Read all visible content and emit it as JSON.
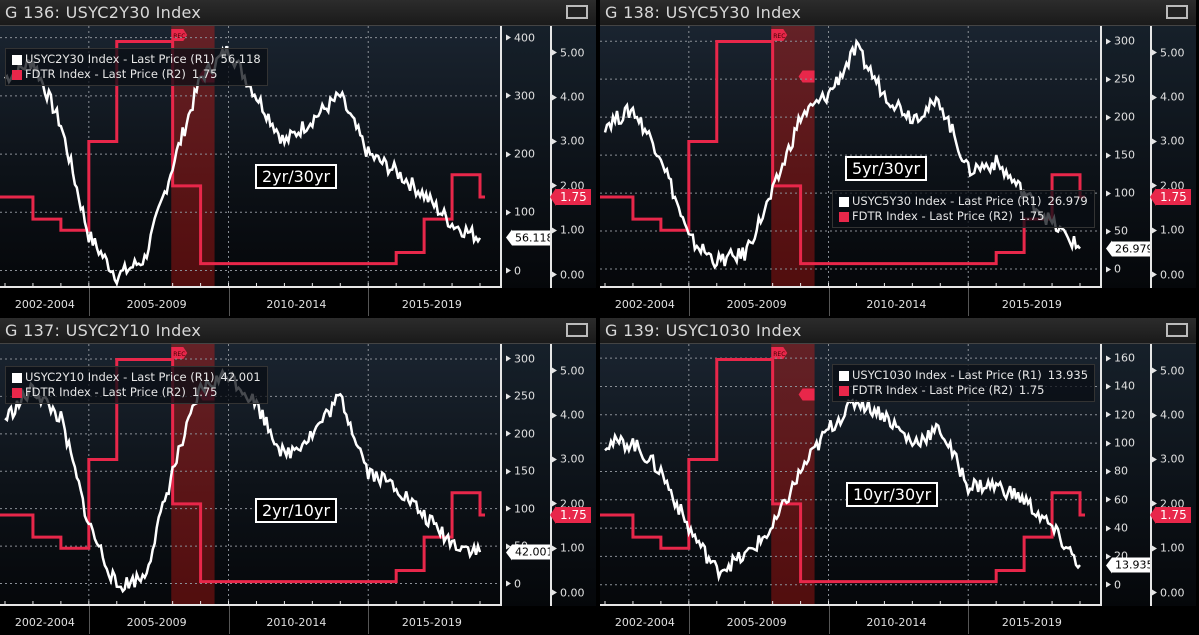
{
  "colors": {
    "spread": "#ffffff",
    "fdtr": "#e8274a",
    "recession": "#8b1a1a"
  },
  "panels": [
    {
      "title": "G 136: USYC2Y30 Index",
      "tag": "2yr/30yr",
      "legend": [
        {
          "label": "USYC2Y30 Index - Last Price (R1)",
          "value": "56.118"
        },
        {
          "label": "FDTR Index - Last Price (R2)",
          "value": "1.75"
        }
      ],
      "r1_ticks": [
        "400",
        "300",
        "200",
        "100",
        "0"
      ],
      "r2_ticks": [
        "5.00",
        "4.00",
        "3.00",
        "2.00",
        "1.00",
        "0.00"
      ],
      "last_r1": "56.118",
      "last_r2": "1.75",
      "x_labels": [
        "2002-2004",
        "2005-2009",
        "2010-2014",
        "2015-2019"
      ]
    },
    {
      "title": "G 138: USYC5Y30 Index",
      "tag": "5yr/30yr",
      "legend": [
        {
          "label": "USYC5Y30 Index - Last Price (R1)",
          "value": "26.979"
        },
        {
          "label": "FDTR Index - Last Price (R2)",
          "value": "1.75"
        }
      ],
      "r1_ticks": [
        "300",
        "250",
        "200",
        "150",
        "100",
        "50",
        "0"
      ],
      "r2_ticks": [
        "5.00",
        "4.00",
        "3.00",
        "2.00",
        "1.00",
        "0.00"
      ],
      "last_r1": "26.979",
      "last_r2": "1.75",
      "x_labels": [
        "2002-2004",
        "2005-2009",
        "2010-2014",
        "2015-2019"
      ]
    },
    {
      "title": "G 137: USYC2Y10 Index",
      "tag": "2yr/10yr",
      "legend": [
        {
          "label": "USYC2Y10 Index - Last Price (R1)",
          "value": "42.001"
        },
        {
          "label": "FDTR Index - Last Price (R2)",
          "value": "1.75"
        }
      ],
      "r1_ticks": [
        "300",
        "250",
        "200",
        "150",
        "100",
        "50",
        "0"
      ],
      "r2_ticks": [
        "5.00",
        "4.00",
        "3.00",
        "2.00",
        "1.00",
        "0.00"
      ],
      "last_r1": "42.001",
      "last_r2": "1.75",
      "x_labels": [
        "2002-2004",
        "2005-2009",
        "2010-2014",
        "2015-2019"
      ]
    },
    {
      "title": "G 139: USYC1030 Index",
      "tag": "10yr/30yr",
      "legend": [
        {
          "label": "USYC1030 Index - Last Price (R1)",
          "value": "13.935"
        },
        {
          "label": "FDTR Index - Last Price (R2)",
          "value": "1.75"
        }
      ],
      "r1_ticks": [
        "160",
        "140",
        "120",
        "100",
        "80",
        "60",
        "40",
        "20",
        "0"
      ],
      "r2_ticks": [
        "5.00",
        "4.00",
        "3.00",
        "2.00",
        "1.00",
        "0.00"
      ],
      "last_r1": "13.935",
      "last_r2": "1.75",
      "x_labels": [
        "2002-2004",
        "2005-2009",
        "2010-2014",
        "2015-2019"
      ]
    }
  ],
  "chart_data": [
    {
      "type": "line",
      "title": "G 136: USYC2Y30 Index",
      "annotation": "2yr/30yr",
      "x": [
        "2002",
        "2003",
        "2004",
        "2005",
        "2006",
        "2007",
        "2008",
        "2009",
        "2010",
        "2011",
        "2012",
        "2013",
        "2014",
        "2015",
        "2016",
        "2017",
        "2018",
        "2019"
      ],
      "series": [
        {
          "name": "USYC2Y30 Index - Last Price (R1)",
          "axis": "R1",
          "values": [
            330,
            360,
            250,
            60,
            -10,
            20,
            180,
            330,
            380,
            300,
            220,
            260,
            300,
            200,
            170,
            130,
            80,
            56.118
          ]
        },
        {
          "name": "FDTR Index - Last Price (R2)",
          "axis": "R2",
          "values": [
            1.75,
            1.25,
            1.0,
            3.0,
            5.25,
            5.25,
            2.0,
            0.25,
            0.25,
            0.25,
            0.25,
            0.25,
            0.25,
            0.25,
            0.5,
            1.25,
            2.25,
            1.75
          ]
        }
      ],
      "r1_range": [
        -30,
        420
      ],
      "r2_range": [
        -0.3,
        5.6
      ],
      "recession_bands": [
        "2007-12 to 2009-06"
      ],
      "legend_position": "top-left",
      "grid": true
    },
    {
      "type": "line",
      "title": "G 138: USYC5Y30 Index",
      "annotation": "5yr/30yr",
      "x": [
        "2002",
        "2003",
        "2004",
        "2005",
        "2006",
        "2007",
        "2008",
        "2009",
        "2010",
        "2011",
        "2012",
        "2013",
        "2014",
        "2015",
        "2016",
        "2017",
        "2018",
        "2019"
      ],
      "series": [
        {
          "name": "USYC5Y30 Index - Last Price (R1)",
          "axis": "R1",
          "values": [
            190,
            210,
            150,
            40,
            10,
            20,
            100,
            200,
            230,
            290,
            230,
            200,
            220,
            130,
            140,
            100,
            60,
            26.979
          ]
        },
        {
          "name": "FDTR Index - Last Price (R2)",
          "axis": "R2",
          "values": [
            1.75,
            1.25,
            1.0,
            3.0,
            5.25,
            5.25,
            2.0,
            0.25,
            0.25,
            0.25,
            0.25,
            0.25,
            0.25,
            0.25,
            0.5,
            1.25,
            2.25,
            1.75
          ]
        }
      ],
      "r1_range": [
        -25,
        320
      ],
      "r2_range": [
        -0.3,
        5.6
      ],
      "recession_bands": [
        "2007-12 to 2009-06"
      ],
      "legend_position": "lower-right",
      "grid": true
    },
    {
      "type": "line",
      "title": "G 137: USYC2Y10 Index",
      "annotation": "2yr/10yr",
      "x": [
        "2002",
        "2003",
        "2004",
        "2005",
        "2006",
        "2007",
        "2008",
        "2009",
        "2010",
        "2011",
        "2012",
        "2013",
        "2014",
        "2015",
        "2016",
        "2017",
        "2018",
        "2019"
      ],
      "series": [
        {
          "name": "USYC2Y10 Index - Last Price (R1)",
          "axis": "R1",
          "values": [
            220,
            260,
            220,
            80,
            -5,
            10,
            150,
            260,
            280,
            240,
            170,
            200,
            250,
            150,
            130,
            90,
            55,
            42.001
          ]
        },
        {
          "name": "FDTR Index - Last Price (R2)",
          "axis": "R2",
          "values": [
            1.75,
            1.25,
            1.0,
            3.0,
            5.25,
            5.25,
            2.0,
            0.25,
            0.25,
            0.25,
            0.25,
            0.25,
            0.25,
            0.25,
            0.5,
            1.25,
            2.25,
            1.75
          ]
        }
      ],
      "r1_range": [
        -30,
        320
      ],
      "r2_range": [
        -0.3,
        5.6
      ],
      "recession_bands": [
        "2007-12 to 2009-06"
      ],
      "legend_position": "top-left",
      "grid": true
    },
    {
      "type": "line",
      "title": "G 139: USYC1030 Index",
      "annotation": "10yr/30yr",
      "x": [
        "2002",
        "2003",
        "2004",
        "2005",
        "2006",
        "2007",
        "2008",
        "2009",
        "2010",
        "2011",
        "2012",
        "2013",
        "2014",
        "2015",
        "2016",
        "2017",
        "2018",
        "2019"
      ],
      "series": [
        {
          "name": "USYC1030 Index - Last Price (R1)",
          "axis": "R1",
          "values": [
            100,
            100,
            80,
            40,
            10,
            20,
            40,
            80,
            110,
            130,
            120,
            100,
            110,
            70,
            70,
            60,
            40,
            13.935
          ]
        },
        {
          "name": "FDTR Index - Last Price (R2)",
          "axis": "R2",
          "values": [
            1.75,
            1.25,
            1.0,
            3.0,
            5.25,
            5.25,
            2.0,
            0.25,
            0.25,
            0.25,
            0.25,
            0.25,
            0.25,
            0.25,
            0.5,
            1.25,
            2.25,
            1.75
          ]
        }
      ],
      "r1_range": [
        -15,
        170
      ],
      "r2_range": [
        -0.3,
        5.6
      ],
      "recession_bands": [
        "2007-12 to 2009-06"
      ],
      "legend_position": "top-right",
      "grid": true
    }
  ]
}
